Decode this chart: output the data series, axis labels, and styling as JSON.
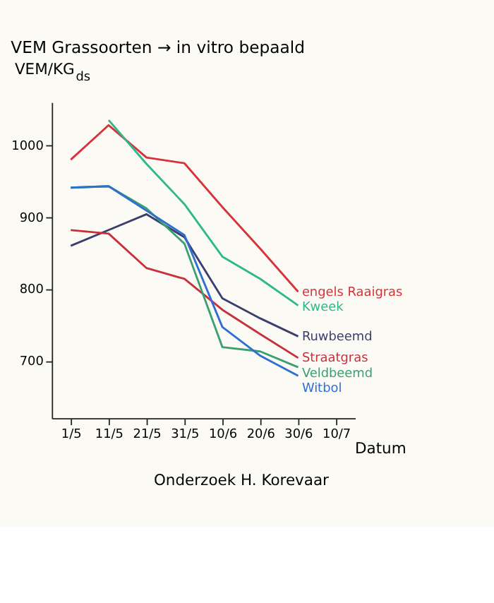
{
  "chart_data": {
    "type": "line",
    "title": "VEM Grassoorten → in vitro bepaald",
    "ylabel": "VEM/KG$_{ds}$",
    "xlabel": "Datum",
    "categories": [
      "1/5",
      "11/5",
      "21/5",
      "31/5",
      "10/6",
      "20/6",
      "30/6",
      "10/7"
    ],
    "series": [
      {
        "name": "engels Raaigras",
        "color": "#d8323a",
        "values": [
          980,
          1028,
          983,
          975,
          914,
          856,
          796,
          null
        ]
      },
      {
        "name": "Kweek",
        "color": "#2fb88a",
        "values": [
          null,
          1035,
          974,
          918,
          845,
          814,
          777,
          null
        ]
      },
      {
        "name": "Ruwbeemd",
        "color": "#3a3f6e",
        "values": [
          860,
          882,
          904,
          872,
          787,
          759,
          734,
          null
        ]
      },
      {
        "name": "Straatgras",
        "color": "#c8303c",
        "values": [
          882,
          877,
          829,
          814,
          771,
          737,
          704,
          null
        ]
      },
      {
        "name": "Veldbeemd",
        "color": "#3aa070",
        "values": [
          941,
          943,
          912,
          863,
          719,
          713,
          691,
          null
        ]
      },
      {
        "name": "Witbol",
        "color": "#2f6fd0",
        "values": [
          941,
          943,
          909,
          875,
          747,
          707,
          679,
          null
        ]
      }
    ],
    "ylim": [
      620,
      1060
    ],
    "yticks": [
      700,
      800,
      900,
      1000
    ],
    "grid": false,
    "legend": false,
    "marker": "none",
    "line_style": "solid",
    "annotations": [
      "Onderzoek H. Korevaar"
    ]
  }
}
